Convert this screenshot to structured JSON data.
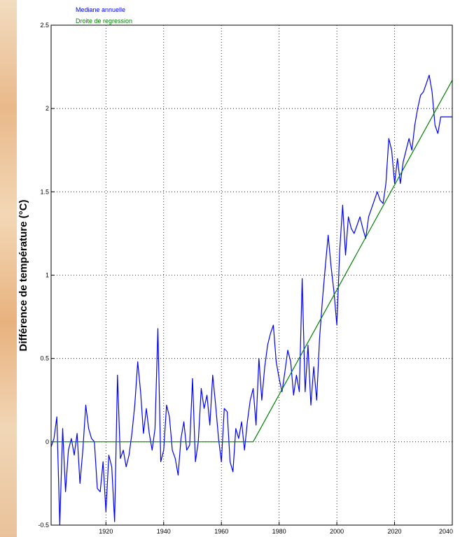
{
  "chart_data": {
    "type": "line",
    "title": "",
    "xlabel": "",
    "ylabel": "Différence de température (°C)",
    "xlim": [
      1901,
      2040
    ],
    "ylim": [
      -0.5,
      2.5
    ],
    "grid": true,
    "legend_position": "top-left",
    "x_ticks": [
      1920,
      1940,
      1960,
      1980,
      2000,
      2020,
      2040
    ],
    "x_tick_labels": [
      "1920",
      "1940",
      "1960",
      "1980",
      "2000",
      "2020",
      "2040"
    ],
    "y_ticks": [
      -0.5,
      0,
      0.5,
      1,
      1.5,
      2,
      2.5
    ],
    "y_tick_labels": [
      "-0.5",
      "0",
      "0.5",
      "1",
      "1.5",
      "2",
      "2.5"
    ],
    "series": [
      {
        "name": "Mediane annuelle",
        "color": "#0000ff",
        "x": [
          1901,
          1902,
          1903,
          1904,
          1905,
          1906,
          1907,
          1908,
          1909,
          1910,
          1911,
          1912,
          1913,
          1914,
          1915,
          1916,
          1917,
          1918,
          1919,
          1920,
          1921,
          1922,
          1923,
          1924,
          1925,
          1926,
          1927,
          1928,
          1929,
          1930,
          1931,
          1932,
          1933,
          1934,
          1935,
          1936,
          1937,
          1938,
          1939,
          1940,
          1941,
          1942,
          1943,
          1944,
          1945,
          1946,
          1947,
          1948,
          1949,
          1950,
          1951,
          1952,
          1953,
          1954,
          1955,
          1956,
          1957,
          1958,
          1959,
          1960,
          1961,
          1962,
          1963,
          1964,
          1965,
          1966,
          1967,
          1968,
          1969,
          1970,
          1971,
          1972,
          1973,
          1974,
          1975,
          1976,
          1977,
          1978,
          1979,
          1980,
          1981,
          1982,
          1983,
          1984,
          1985,
          1986,
          1987,
          1988,
          1989,
          1990,
          1991,
          1992,
          1993,
          1994,
          1995,
          1996,
          1997,
          1998,
          1999,
          2000,
          2001,
          2002,
          2003,
          2004,
          2005,
          2006,
          2007,
          2008,
          2009,
          2010,
          2011,
          2012,
          2013,
          2014,
          2015,
          2016,
          2017,
          2018,
          2019,
          2020,
          2021,
          2022,
          2023,
          2024,
          2025,
          2026,
          2027,
          2028,
          2029,
          2030,
          2031,
          2032,
          2033,
          2034,
          2035,
          2036,
          2037,
          2038,
          2039,
          2040
        ],
        "y": [
          -0.03,
          0.02,
          0.15,
          -0.5,
          0.08,
          -0.3,
          -0.05,
          0.02,
          -0.08,
          0.05,
          -0.25,
          -0.05,
          0.22,
          0.08,
          0.02,
          0.0,
          -0.28,
          -0.3,
          -0.12,
          -0.42,
          -0.08,
          -0.15,
          -0.48,
          0.4,
          -0.1,
          -0.05,
          -0.15,
          -0.08,
          0.05,
          0.22,
          0.48,
          0.3,
          0.05,
          0.2,
          0.05,
          -0.05,
          0.08,
          0.68,
          -0.12,
          -0.05,
          0.22,
          0.15,
          -0.05,
          -0.1,
          -0.2,
          0.02,
          0.12,
          -0.05,
          -0.02,
          0.38,
          -0.12,
          0.0,
          0.32,
          0.2,
          0.28,
          0.1,
          0.4,
          0.22,
          0.02,
          -0.12,
          0.2,
          0.18,
          -0.12,
          -0.18,
          0.08,
          0.02,
          0.12,
          -0.05,
          0.12,
          0.25,
          0.32,
          0.1,
          0.5,
          0.25,
          0.45,
          0.58,
          0.65,
          0.7,
          0.48,
          0.38,
          0.3,
          0.42,
          0.55,
          0.48,
          0.28,
          0.4,
          0.3,
          0.98,
          0.3,
          0.58,
          0.22,
          0.45,
          0.25,
          0.62,
          0.85,
          1.05,
          1.24,
          1.05,
          0.9,
          0.7,
          1.15,
          1.42,
          1.12,
          1.35,
          1.28,
          1.25,
          1.3,
          1.35,
          1.28,
          1.22,
          1.35,
          1.4,
          1.45,
          1.5,
          1.45,
          1.43,
          1.55,
          1.82,
          1.75,
          1.55,
          1.7,
          1.55,
          1.68,
          1.75,
          1.82,
          1.75,
          1.9,
          2.0,
          2.08,
          2.1,
          2.15,
          2.2,
          2.1,
          1.9,
          1.85,
          1.95,
          1.95,
          1.95,
          1.95,
          1.95
        ]
      },
      {
        "name": "Droite de regression",
        "color": "#008000",
        "x": [
          1901,
          1971,
          2040
        ],
        "y": [
          0,
          0,
          2.17
        ]
      }
    ]
  }
}
